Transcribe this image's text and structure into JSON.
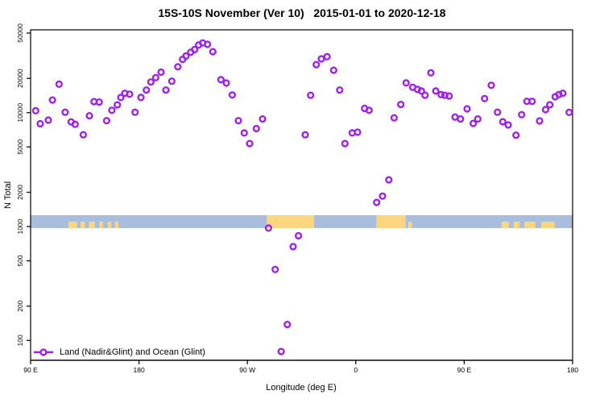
{
  "legend": {
    "label": "Land (Nadir&Glint) and Ocean (Glint)",
    "position": "bottom-left"
  },
  "colors": {
    "point": "#A020F0",
    "ocean": "#A8BEDC",
    "land": "#FCD67F",
    "axis": "#000000"
  },
  "chart_data": {
    "type": "scatter",
    "title": "15S-10S November (Ver 10)   2015-01-01 to 2020-12-18",
    "xlabel": "Longitude (deg E)",
    "ylabel": "N Total",
    "grid": false,
    "x_axis": {
      "range_deg": [
        0,
        450
      ],
      "ticks": [
        {
          "deg": 0,
          "label": "90 E"
        },
        {
          "deg": 90,
          "label": "180"
        },
        {
          "deg": 180,
          "label": "90 W"
        },
        {
          "deg": 270,
          "label": "0"
        },
        {
          "deg": 360,
          "label": "90 E"
        },
        {
          "deg": 450,
          "label": "180"
        }
      ]
    },
    "y_axis": {
      "scale": "log",
      "range": [
        75,
        52000
      ],
      "ticks": [
        100,
        200,
        500,
        1000,
        2000,
        5000,
        10000,
        20000,
        50000
      ]
    },
    "map_band": {
      "value_range": [
        950,
        1180
      ],
      "land_segments": [
        {
          "from": 31.5,
          "to": 38.5,
          "height": "low"
        },
        {
          "from": 41.5,
          "to": 45.0,
          "height": "low"
        },
        {
          "from": 48.5,
          "to": 53.5,
          "height": "low"
        },
        {
          "from": 57.0,
          "to": 60.0,
          "height": "low"
        },
        {
          "from": 64.0,
          "to": 67.0,
          "height": "low"
        },
        {
          "from": 70.0,
          "to": 73.0,
          "height": "low"
        },
        {
          "from": 196.0,
          "to": 235.5,
          "height": "full"
        },
        {
          "from": 287.0,
          "to": 311.5,
          "height": "full"
        },
        {
          "from": 313.5,
          "to": 316.5,
          "height": "low"
        },
        {
          "from": 391.0,
          "to": 397.0,
          "height": "low"
        },
        {
          "from": 401.0,
          "to": 406.0,
          "height": "low"
        },
        {
          "from": 410.0,
          "to": 419.0,
          "height": "low"
        },
        {
          "from": 424.0,
          "to": 435.0,
          "height": "low"
        }
      ]
    },
    "points": [
      [
        4.2,
        10400
      ],
      [
        8.0,
        8000
      ],
      [
        14.7,
        8600
      ],
      [
        18.1,
        12900
      ],
      [
        23.6,
        17800
      ],
      [
        28.7,
        10100
      ],
      [
        33.6,
        8300
      ],
      [
        37.0,
        7900
      ],
      [
        43.7,
        6400
      ],
      [
        48.8,
        9400
      ],
      [
        52.6,
        12500
      ],
      [
        57.0,
        12400
      ],
      [
        63.1,
        8500
      ],
      [
        67.5,
        10500
      ],
      [
        72.0,
        11700
      ],
      [
        74.9,
        13600
      ],
      [
        78.2,
        14800
      ],
      [
        82.2,
        14550
      ],
      [
        86.7,
        10100
      ],
      [
        91.6,
        13600
      ],
      [
        96.1,
        15800
      ],
      [
        99.8,
        18600
      ],
      [
        103.9,
        20300
      ],
      [
        108.3,
        22700
      ],
      [
        112.3,
        15800
      ],
      [
        117.2,
        18900
      ],
      [
        122.2,
        25300
      ],
      [
        126.2,
        29400
      ],
      [
        129.0,
        31400
      ],
      [
        132.9,
        33900
      ],
      [
        136.2,
        35800
      ],
      [
        139.5,
        39200
      ],
      [
        142.9,
        40900
      ],
      [
        146.9,
        39800
      ],
      [
        151.3,
        34300
      ],
      [
        158.0,
        19500
      ],
      [
        162.5,
        18200
      ],
      [
        167.4,
        14300
      ],
      [
        172.5,
        8500
      ],
      [
        177.4,
        6640
      ],
      [
        181.9,
        5350
      ],
      [
        187.4,
        7250
      ],
      [
        192.6,
        8800
      ],
      [
        197.5,
        970
      ],
      [
        203.1,
        420
      ],
      [
        208.0,
        80
      ],
      [
        213.1,
        138
      ],
      [
        218.0,
        666
      ],
      [
        222.4,
        830
      ],
      [
        228.0,
        6400
      ],
      [
        232.5,
        14200
      ],
      [
        237.2,
        26400
      ],
      [
        241.4,
        29700
      ],
      [
        246.1,
        31000
      ],
      [
        251.6,
        23600
      ],
      [
        256.6,
        15800
      ],
      [
        261.0,
        5350
      ],
      [
        267.0,
        6640
      ],
      [
        271.5,
        6740
      ],
      [
        277.3,
        10900
      ],
      [
        281.0,
        10500
      ],
      [
        287.3,
        1630
      ],
      [
        292.2,
        1850
      ],
      [
        297.4,
        2570
      ],
      [
        301.8,
        9000
      ],
      [
        307.4,
        11800
      ],
      [
        311.8,
        18260
      ],
      [
        317.2,
        16700
      ],
      [
        321.2,
        16000
      ],
      [
        324.5,
        15500
      ],
      [
        327.5,
        14200
      ],
      [
        332.3,
        22400
      ],
      [
        336.4,
        15500
      ],
      [
        340.8,
        14400
      ],
      [
        343.9,
        14200
      ],
      [
        347.5,
        14000
      ],
      [
        352.4,
        9150
      ],
      [
        356.9,
        8800
      ],
      [
        362.4,
        10800
      ],
      [
        367.5,
        8050
      ],
      [
        371.3,
        8800
      ],
      [
        376.9,
        13300
      ],
      [
        382.5,
        17400
      ],
      [
        387.6,
        10100
      ],
      [
        392.0,
        8330
      ],
      [
        396.5,
        7800
      ],
      [
        403.0,
        6340
      ],
      [
        407.7,
        9590
      ],
      [
        412.1,
        12580
      ],
      [
        416.4,
        12580
      ],
      [
        422.6,
        8470
      ],
      [
        427.5,
        10630
      ],
      [
        431.1,
        11730
      ],
      [
        435.5,
        13800
      ],
      [
        438.6,
        14420
      ],
      [
        441.9,
        14800
      ],
      [
        447.1,
        10060
      ]
    ]
  }
}
